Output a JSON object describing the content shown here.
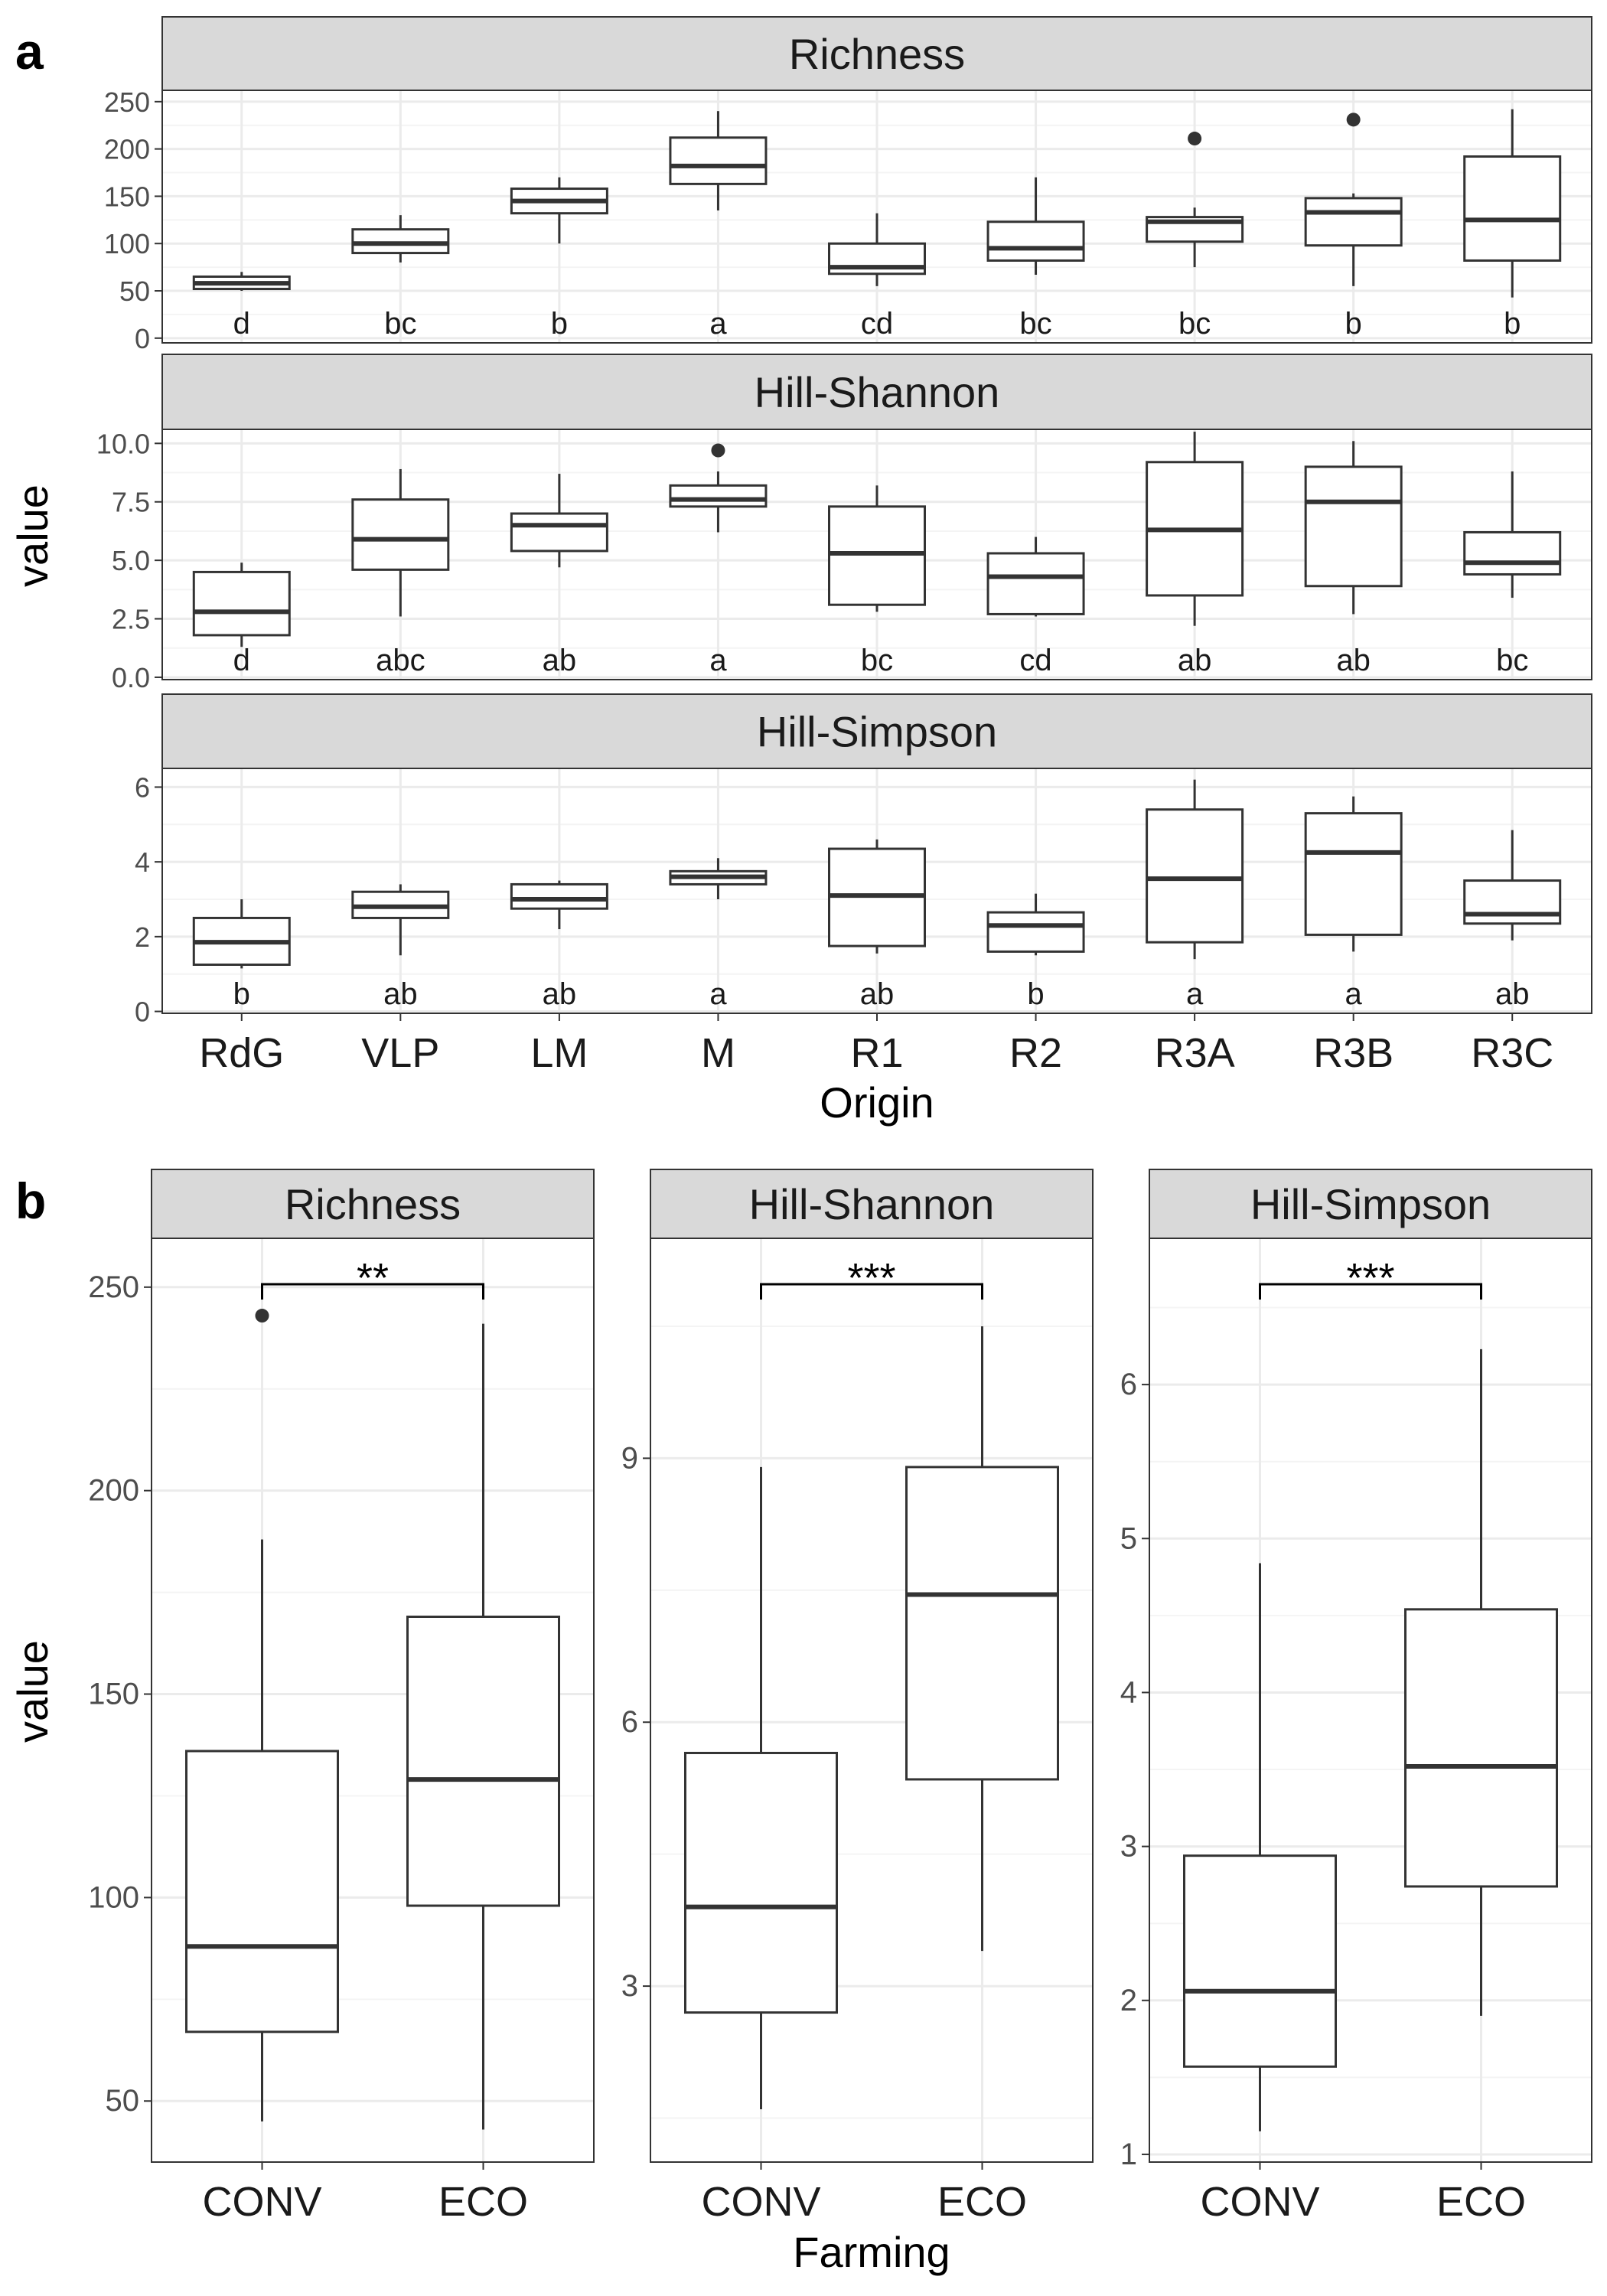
{
  "panel_labels": [
    "a",
    "b"
  ],
  "chart_data": [
    {
      "panel": "a",
      "type": "boxplot",
      "ylabel": "value",
      "xlabel": "Origin",
      "categories": [
        "RdG",
        "VLP",
        "LM",
        "M",
        "R1",
        "R2",
        "R3A",
        "R3B",
        "R3C"
      ],
      "grid": true,
      "facets": [
        {
          "title": "Richness",
          "ylim": [
            -5,
            262
          ],
          "yticks": [
            0,
            50,
            100,
            150,
            200,
            250
          ],
          "tick_labels": [
            "0",
            "50",
            "100",
            "150",
            "200",
            "250"
          ],
          "boxes": [
            {
              "whislo": 50,
              "q1": 52,
              "med": 58,
              "q3": 65,
              "whishi": 70,
              "fliers": []
            },
            {
              "whislo": 80,
              "q1": 90,
              "med": 100,
              "q3": 115,
              "whishi": 130,
              "fliers": []
            },
            {
              "whislo": 100,
              "q1": 132,
              "med": 145,
              "q3": 158,
              "whishi": 170,
              "fliers": []
            },
            {
              "whislo": 135,
              "q1": 163,
              "med": 182,
              "q3": 212,
              "whishi": 240,
              "fliers": []
            },
            {
              "whislo": 55,
              "q1": 68,
              "med": 75,
              "q3": 100,
              "whishi": 132,
              "fliers": []
            },
            {
              "whislo": 67,
              "q1": 82,
              "med": 95,
              "q3": 123,
              "whishi": 170,
              "fliers": []
            },
            {
              "whislo": 75,
              "q1": 102,
              "med": 123,
              "q3": 128,
              "whishi": 138,
              "fliers": [
                211
              ]
            },
            {
              "whislo": 55,
              "q1": 98,
              "med": 133,
              "q3": 148,
              "whishi": 153,
              "fliers": [
                231
              ]
            },
            {
              "whislo": 43,
              "q1": 82,
              "med": 125,
              "q3": 192,
              "whishi": 242,
              "fliers": []
            }
          ],
          "letters": [
            "d",
            "bc",
            "b",
            "a",
            "cd",
            "bc",
            "bc",
            "b",
            "b"
          ]
        },
        {
          "title": "Hill-Shannon",
          "ylim": [
            -0.1,
            10.6
          ],
          "yticks": [
            0,
            2.5,
            5,
            7.5,
            10
          ],
          "tick_labels": [
            "0.0",
            "2.5",
            "5.0",
            "7.5",
            "10.0"
          ],
          "boxes": [
            {
              "whislo": 1.3,
              "q1": 1.8,
              "med": 2.8,
              "q3": 4.5,
              "whishi": 4.9,
              "fliers": []
            },
            {
              "whislo": 2.6,
              "q1": 4.6,
              "med": 5.9,
              "q3": 7.6,
              "whishi": 8.9,
              "fliers": []
            },
            {
              "whislo": 4.7,
              "q1": 5.4,
              "med": 6.5,
              "q3": 7.0,
              "whishi": 8.7,
              "fliers": []
            },
            {
              "whislo": 6.2,
              "q1": 7.3,
              "med": 7.6,
              "q3": 8.2,
              "whishi": 8.8,
              "fliers": [
                9.7
              ]
            },
            {
              "whislo": 2.8,
              "q1": 3.1,
              "med": 5.3,
              "q3": 7.3,
              "whishi": 8.2,
              "fliers": []
            },
            {
              "whislo": 2.6,
              "q1": 2.7,
              "med": 4.3,
              "q3": 5.3,
              "whishi": 6.0,
              "fliers": []
            },
            {
              "whislo": 2.2,
              "q1": 3.5,
              "med": 6.3,
              "q3": 9.2,
              "whishi": 10.5,
              "fliers": []
            },
            {
              "whislo": 2.7,
              "q1": 3.9,
              "med": 7.5,
              "q3": 9.0,
              "whishi": 10.1,
              "fliers": []
            },
            {
              "whislo": 3.4,
              "q1": 4.4,
              "med": 4.9,
              "q3": 6.2,
              "whishi": 8.8,
              "fliers": []
            }
          ],
          "letters": [
            "d",
            "abc",
            "ab",
            "a",
            "bc",
            "cd",
            "ab",
            "ab",
            "bc"
          ]
        },
        {
          "title": "Hill-Simpson",
          "ylim": [
            -0.05,
            6.5
          ],
          "yticks": [
            0,
            2,
            4,
            6
          ],
          "tick_labels": [
            "0",
            "2",
            "4",
            "6"
          ],
          "boxes": [
            {
              "whislo": 1.15,
              "q1": 1.25,
              "med": 1.85,
              "q3": 2.5,
              "whishi": 3.0,
              "fliers": []
            },
            {
              "whislo": 1.5,
              "q1": 2.5,
              "med": 2.8,
              "q3": 3.2,
              "whishi": 3.4,
              "fliers": []
            },
            {
              "whislo": 2.2,
              "q1": 2.75,
              "med": 3.0,
              "q3": 3.4,
              "whishi": 3.5,
              "fliers": []
            },
            {
              "whislo": 3.0,
              "q1": 3.4,
              "med": 3.6,
              "q3": 3.75,
              "whishi": 4.1,
              "fliers": []
            },
            {
              "whislo": 1.55,
              "q1": 1.75,
              "med": 3.1,
              "q3": 4.35,
              "whishi": 4.6,
              "fliers": []
            },
            {
              "whislo": 1.5,
              "q1": 1.6,
              "med": 2.3,
              "q3": 2.65,
              "whishi": 3.15,
              "fliers": []
            },
            {
              "whislo": 1.4,
              "q1": 1.85,
              "med": 3.55,
              "q3": 5.4,
              "whishi": 6.2,
              "fliers": []
            },
            {
              "whislo": 1.6,
              "q1": 2.05,
              "med": 4.25,
              "q3": 5.3,
              "whishi": 5.75,
              "fliers": []
            },
            {
              "whislo": 1.9,
              "q1": 2.35,
              "med": 2.6,
              "q3": 3.5,
              "whishi": 4.85,
              "fliers": []
            }
          ],
          "letters": [
            "b",
            "ab",
            "ab",
            "a",
            "ab",
            "b",
            "a",
            "a",
            "ab"
          ]
        }
      ]
    },
    {
      "panel": "b",
      "type": "boxplot",
      "ylabel": "value",
      "xlabel": "Farming",
      "categories": [
        "CONV",
        "ECO"
      ],
      "grid": true,
      "facets": [
        {
          "title": "Richness",
          "ylim": [
            35,
            262
          ],
          "yticks": [
            50,
            100,
            150,
            200,
            250
          ],
          "tick_labels": [
            "50",
            "100",
            "150",
            "200",
            "250"
          ],
          "boxes": [
            {
              "whislo": 45,
              "q1": 67,
              "med": 88,
              "q3": 136,
              "whishi": 188,
              "fliers": [
                243
              ]
            },
            {
              "whislo": 43,
              "q1": 98,
              "med": 129,
              "q3": 169,
              "whishi": 241,
              "fliers": []
            }
          ],
          "significance": "**"
        },
        {
          "title": "Hill-Shannon",
          "ylim": [
            1.0,
            11.5
          ],
          "yticks": [
            3,
            6,
            9
          ],
          "tick_labels": [
            "3",
            "6",
            "9"
          ],
          "boxes": [
            {
              "whislo": 1.6,
              "q1": 2.7,
              "med": 3.9,
              "q3": 5.65,
              "whishi": 8.9,
              "fliers": []
            },
            {
              "whislo": 3.4,
              "q1": 5.35,
              "med": 7.45,
              "q3": 8.9,
              "whishi": 10.5,
              "fliers": []
            }
          ],
          "significance": "***"
        },
        {
          "title": "Hill-Simpson",
          "ylim": [
            0.95,
            6.95
          ],
          "yticks": [
            1,
            2,
            3,
            4,
            5,
            6
          ],
          "tick_labels": [
            "1",
            "2",
            "3",
            "4",
            "5",
            "6"
          ],
          "boxes": [
            {
              "whislo": 1.15,
              "q1": 1.57,
              "med": 2.06,
              "q3": 2.94,
              "whishi": 4.84,
              "fliers": []
            },
            {
              "whislo": 1.9,
              "q1": 2.74,
              "med": 3.52,
              "q3": 4.54,
              "whishi": 6.23,
              "fliers": []
            }
          ],
          "significance": "***"
        }
      ]
    }
  ]
}
